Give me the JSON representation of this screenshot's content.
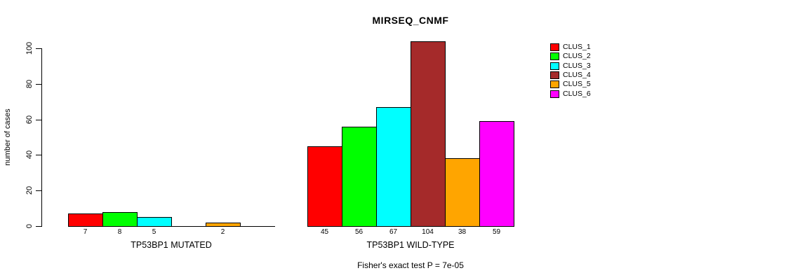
{
  "chart_data": {
    "type": "bar",
    "title": "MIRSEQ_CNMF",
    "ylabel": "number of cases",
    "ylim": [
      0,
      100
    ],
    "yticks": [
      0,
      20,
      40,
      60,
      80,
      100
    ],
    "grid": false,
    "legend_position": "right",
    "legend": [
      {
        "label": "CLUS_1",
        "color": "#FF0000"
      },
      {
        "label": "CLUS_2",
        "color": "#00FF00"
      },
      {
        "label": "CLUS_3",
        "color": "#00FFFF"
      },
      {
        "label": "CLUS_4",
        "color": "#A52A2A"
      },
      {
        "label": "CLUS_5",
        "color": "#FFA500"
      },
      {
        "label": "CLUS_6",
        "color": "#FF00FF"
      }
    ],
    "groups": [
      {
        "label": "TP53BP1 MUTATED",
        "categories": [
          "CLUS_1",
          "CLUS_2",
          "CLUS_3",
          "CLUS_4",
          "CLUS_5",
          "CLUS_6"
        ],
        "values": [
          7,
          8,
          5,
          0,
          2,
          0
        ],
        "bar_labels": [
          "7",
          "8",
          "5",
          "",
          "2",
          ""
        ]
      },
      {
        "label": "TP53BP1 WILD-TYPE",
        "categories": [
          "CLUS_1",
          "CLUS_2",
          "CLUS_3",
          "CLUS_4",
          "CLUS_5",
          "CLUS_6"
        ],
        "values": [
          45,
          56,
          67,
          104,
          38,
          59
        ],
        "bar_labels": [
          "45",
          "56",
          "67",
          "104",
          "38",
          "59"
        ]
      }
    ],
    "caption": "Fisher's exact test P = 7e-05"
  }
}
